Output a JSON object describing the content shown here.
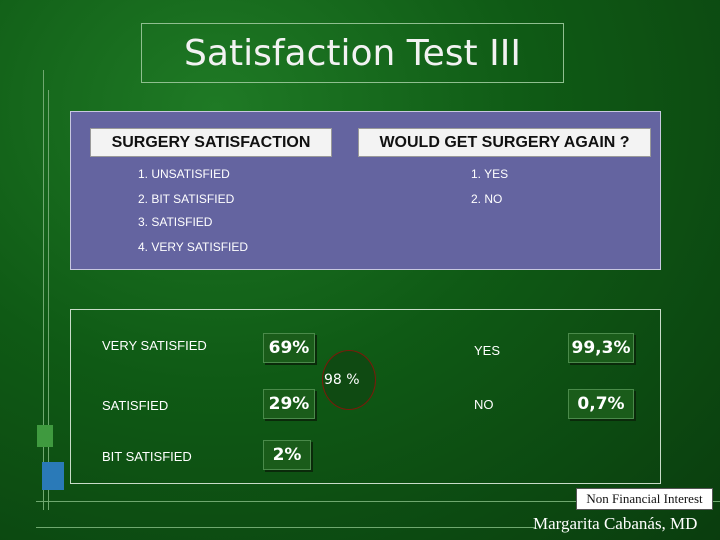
{
  "title": "Satisfaction Test III",
  "panel": {
    "left_header": "SURGERY SATISFACTION",
    "right_header": "WOULD GET SURGERY AGAIN ?",
    "left_options": [
      "1. UNSATISFIED",
      "2. BIT SATISFIED",
      "3. SATISFIED",
      "4. VERY SATISFIED"
    ],
    "right_options": [
      "1. YES",
      "2. NO"
    ]
  },
  "results": {
    "satisfaction": [
      {
        "label": "VERY SATISFIED",
        "value": "69%"
      },
      {
        "label": "SATISFIED",
        "value": "29%"
      },
      {
        "label": "BIT SATISFIED",
        "value": "2%"
      }
    ],
    "combined": "98 %",
    "again": [
      {
        "label": "YES",
        "value": "99,3%"
      },
      {
        "label": "NO",
        "value": "0,7%"
      }
    ]
  },
  "footer": {
    "disclosure": "Non Financial  Interest",
    "author": "Margarita Cabanás, MD"
  },
  "colors": {
    "background": "#0f5a15",
    "panel": "#6464a0",
    "header_bg": "#f3f3f3",
    "value_box": "#1a5c1a"
  }
}
